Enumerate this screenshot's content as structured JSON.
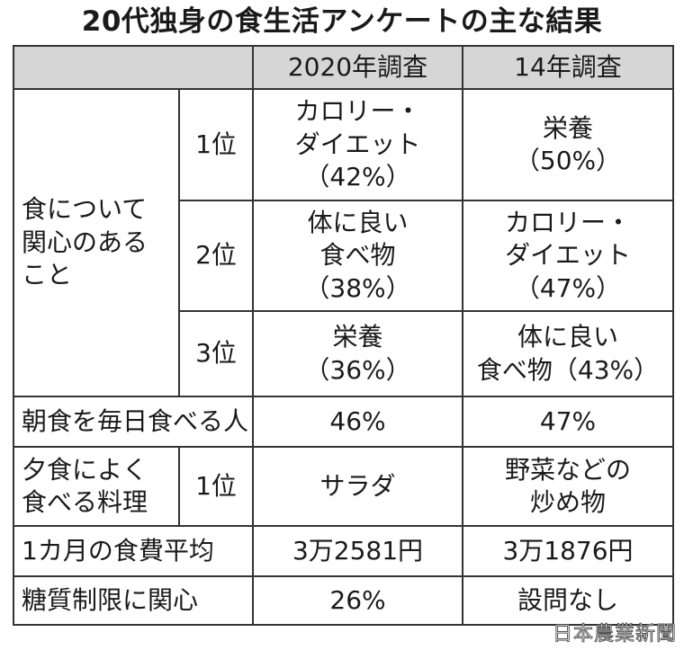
{
  "title": "20代独身の食生活アンケートの主な結果",
  "table": {
    "headers": [
      "2020年調査",
      "14年調査"
    ],
    "interests": {
      "label_lines": [
        "食について",
        "関心のある",
        "こと"
      ],
      "rows": [
        {
          "rank": "1位",
          "y2020": [
            "カロリー・",
            "ダイエット",
            "（42%）"
          ],
          "y2014": [
            "栄養",
            "（50%）"
          ]
        },
        {
          "rank": "2位",
          "y2020": [
            "体に良い",
            "食べ物",
            "（38%）"
          ],
          "y2014": [
            "カロリー・",
            "ダイエット",
            "（47%）"
          ]
        },
        {
          "rank": "3位",
          "y2020": [
            "栄養",
            "（36%）"
          ],
          "y2014": [
            "体に良い",
            "食べ物（43%）"
          ]
        }
      ]
    },
    "breakfast": {
      "label": "朝食を毎日食べる人",
      "y2020": "46%",
      "y2014": "47%"
    },
    "dinner": {
      "label_lines": [
        "夕食によく",
        "食べる料理"
      ],
      "rank": "1位",
      "y2020": "サラダ",
      "y2014": [
        "野菜などの",
        "炒め物"
      ]
    },
    "food_cost": {
      "label": "1カ月の食費平均",
      "y2020": "3万2581円",
      "y2014": "3万1876円"
    },
    "carb": {
      "label": "糖質制限に関心",
      "y2020": "26%",
      "y2014": "設問なし"
    }
  },
  "watermark": "日本農業新聞"
}
